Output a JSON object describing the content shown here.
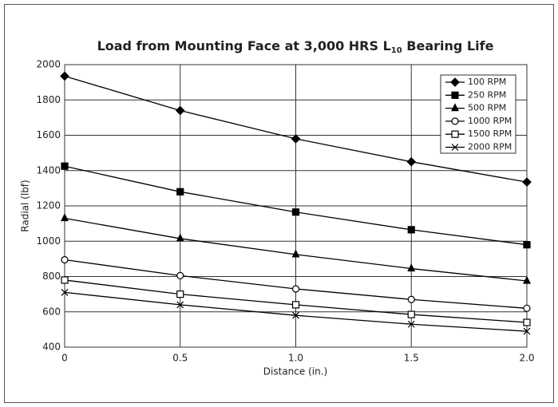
{
  "chart_data": {
    "type": "line",
    "title": {
      "main": "Load from Mounting Face at 3,000 HRS L",
      "subscript": "10",
      "rest": " Bearing Life"
    },
    "x_label": "Distance (in.)",
    "y_label": "Radial (lbf)",
    "x": [
      0,
      0.5,
      1,
      1.5,
      2
    ],
    "series": [
      {
        "name": "100 RPM",
        "color": "#000000",
        "marker": "diamond",
        "values": [
          1935,
          1740,
          1580,
          1450,
          1335
        ]
      },
      {
        "name": "250 RPM",
        "color": "#000000",
        "marker": "square",
        "values": [
          1425,
          1280,
          1165,
          1065,
          980
        ]
      },
      {
        "name": "500 RPM",
        "color": "#000000",
        "marker": "triangle",
        "values": [
          1130,
          1015,
          925,
          845,
          775
        ]
      },
      {
        "name": "1000 RPM",
        "color": "#000000",
        "marker": "circle-open",
        "values": [
          895,
          805,
          730,
          670,
          620
        ]
      },
      {
        "name": "1500 RPM",
        "color": "#000000",
        "marker": "square-open",
        "values": [
          780,
          700,
          640,
          585,
          540
        ]
      },
      {
        "name": "2000 RPM",
        "color": "#000000",
        "marker": "x",
        "values": [
          710,
          640,
          580,
          530,
          490
        ]
      }
    ],
    "xlim": [
      0,
      2
    ],
    "xticks": [
      0,
      0.5,
      {
        "value": 1,
        "label": "1.0"
      },
      1.5,
      {
        "value": 2,
        "label": "2.0"
      }
    ],
    "ylim": [
      400,
      2000
    ],
    "yticks": [
      400,
      600,
      800,
      1000,
      1200,
      1400,
      1600,
      1800,
      2000
    ],
    "grid": true,
    "legend": "upper right"
  }
}
